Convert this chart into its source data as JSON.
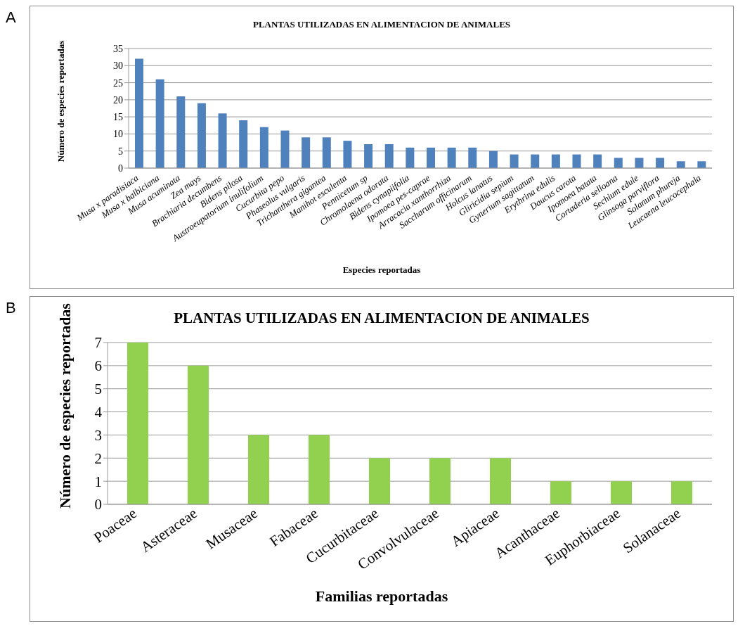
{
  "chart_data": [
    {
      "type": "bar",
      "title": "PLANTAS UTILIZADAS EN ALIMENTACION DE ANIMALES",
      "xlabel": "Especies reportadas",
      "ylabel": "Número de especies  reportadas",
      "annotations": [
        "A"
      ],
      "categories": [
        "Musa x paradisiaca",
        "Musa x balbiciana",
        "Musa acuminata",
        "Zea mays",
        "Brachiaria decumbens",
        "Bidens pilosa",
        "Austroeupatorium inulifolium",
        "Cucurbita pepo",
        "Phaseolus vulgaris",
        "Trichanthera gigantea",
        "Manihot esculenta",
        "Pennicetum sp",
        "Chromolaena odorata",
        "Bidens cynapiifolia",
        "Ipomoea pes-caprae",
        "Arracacia xanthorrhiza",
        "Saccharum officinarum",
        "Holcus lanatus",
        "Gliricidia sepium",
        "Gynerium sagittatum",
        "Erythrina edulis",
        "Daucus carota",
        "Ipomoea batata",
        "Cortaderia selloana",
        "Sechium edule",
        "Glinsoga parviflora",
        "Solanum phureja",
        "Leucaena leucocephala"
      ],
      "values": [
        32,
        26,
        21,
        19,
        16,
        14,
        12,
        11,
        9,
        9,
        8,
        7,
        7,
        6,
        6,
        6,
        6,
        5,
        4,
        4,
        4,
        4,
        4,
        3,
        3,
        3,
        2,
        2
      ],
      "color": "#4f81bd",
      "ylim": [
        0,
        35
      ],
      "yticks": [
        0,
        5,
        10,
        15,
        20,
        25,
        30,
        35
      ],
      "grid": "y"
    },
    {
      "type": "bar",
      "title": "PLANTAS UTILIZADAS EN ALIMENTACION DE ANIMALES",
      "xlabel": "Familias reportadas",
      "ylabel": "Número de especies reportadas",
      "annotations": [
        "B"
      ],
      "categories": [
        "Poaceae",
        "Asteraceae",
        "Musaceae",
        "Fabaceae",
        "Cucurbitaceae",
        "Convolvulaceae",
        "Apiaceae",
        "Acanthaceae",
        "Euphorbiaceae",
        "Solanaceae"
      ],
      "values": [
        7,
        6,
        3,
        3,
        2,
        2,
        2,
        1,
        1,
        1
      ],
      "color": "#92d050",
      "ylim": [
        0,
        7
      ],
      "yticks": [
        0,
        1,
        2,
        3,
        4,
        5,
        6,
        7
      ],
      "grid": "y"
    }
  ]
}
